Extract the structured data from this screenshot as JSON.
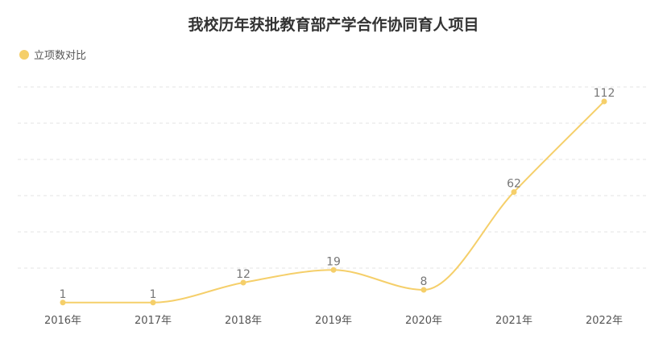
{
  "chart_data": {
    "type": "line",
    "title": "我校历年获批教育部产学合作协同育人项目",
    "categories": [
      "2016年",
      "2017年",
      "2018年",
      "2019年",
      "2020年",
      "2021年",
      "2022年"
    ],
    "series": [
      {
        "name": "立项数对比",
        "values": [
          1,
          1,
          12,
          19,
          8,
          62,
          112
        ],
        "color": "#f5cf6a"
      }
    ],
    "ylim": [
      0,
      120
    ],
    "grid": true,
    "legend": "top-left",
    "smooth": true
  }
}
